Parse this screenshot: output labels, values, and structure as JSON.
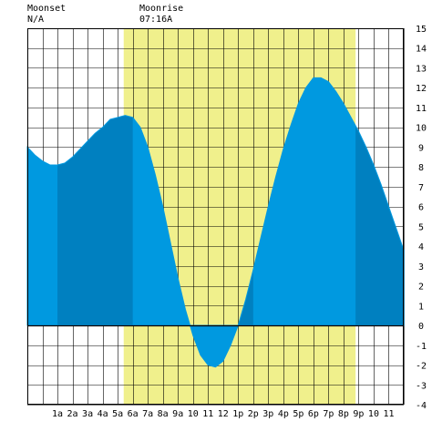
{
  "header": {
    "moonset_label": "Moonset",
    "moonset_time": "N/A",
    "moonrise_label": "Moonrise",
    "moonrise_time": "07:16A"
  },
  "colors": {
    "background": "#ffffff",
    "grid": "#000000",
    "daylight": "#f0f08c",
    "tide_light": "#0099e0",
    "tide_dark": "#0080c0"
  },
  "chart_data": {
    "type": "area",
    "title": "",
    "xlabel": "",
    "ylabel": "",
    "x_unit": "hour",
    "xlim": [
      -1,
      24
    ],
    "ylim": [
      -4,
      15
    ],
    "grid": true,
    "x_tick_labels": [
      "1a",
      "2a",
      "3a",
      "4a",
      "5a",
      "6a",
      "7a",
      "8a",
      "9a",
      "10",
      "11",
      "12",
      "1p",
      "2p",
      "3p",
      "4p",
      "5p",
      "6p",
      "7p",
      "8p",
      "9p",
      "10",
      "11"
    ],
    "x_tick_values": [
      1,
      2,
      3,
      4,
      5,
      6,
      7,
      8,
      9,
      10,
      11,
      12,
      13,
      14,
      15,
      16,
      17,
      18,
      19,
      20,
      21,
      22,
      23
    ],
    "y_tick_labels": [
      "-4",
      "-3",
      "-2",
      "-1",
      "0",
      "1",
      "2",
      "3",
      "4",
      "5",
      "6",
      "7",
      "8",
      "9",
      "10",
      "11",
      "12",
      "13",
      "14",
      "15"
    ],
    "y_tick_values": [
      -4,
      -3,
      -2,
      -1,
      0,
      1,
      2,
      3,
      4,
      5,
      6,
      7,
      8,
      9,
      10,
      11,
      12,
      13,
      14,
      15
    ],
    "daylight_window": [
      5.4,
      20.8
    ],
    "shaded_bands": [
      [
        1,
        6
      ],
      [
        13,
        14
      ],
      [
        20.8,
        24
      ]
    ],
    "series": [
      {
        "x": [
          -1,
          -0.5,
          0,
          0.5,
          1,
          1.5,
          2,
          2.5,
          3,
          3.5,
          4,
          4.5,
          5,
          5.5,
          6,
          6.5,
          7,
          7.5,
          8,
          8.5,
          9,
          9.5,
          10,
          10.5,
          11,
          11.5,
          12,
          12.5,
          13,
          13.5,
          14,
          14.5,
          15,
          15.5,
          16,
          16.5,
          17,
          17.5,
          18,
          18.5,
          19,
          19.5,
          20,
          20.5,
          21,
          21.5,
          22,
          22.5,
          23,
          23.5,
          24
        ],
        "values": [
          9.0,
          8.6,
          8.3,
          8.1,
          8.1,
          8.2,
          8.5,
          8.9,
          9.3,
          9.7,
          10.0,
          10.4,
          10.5,
          10.6,
          10.5,
          10.0,
          9.0,
          7.6,
          6.0,
          4.2,
          2.4,
          0.8,
          -0.5,
          -1.5,
          -2.0,
          -2.1,
          -1.8,
          -1.0,
          0.0,
          1.3,
          2.8,
          4.4,
          6.0,
          7.5,
          8.9,
          10.1,
          11.2,
          12.0,
          12.5,
          12.5,
          12.3,
          11.8,
          11.2,
          10.5,
          9.8,
          9.0,
          8.1,
          7.1,
          6.0,
          4.9,
          3.8
        ]
      }
    ]
  }
}
